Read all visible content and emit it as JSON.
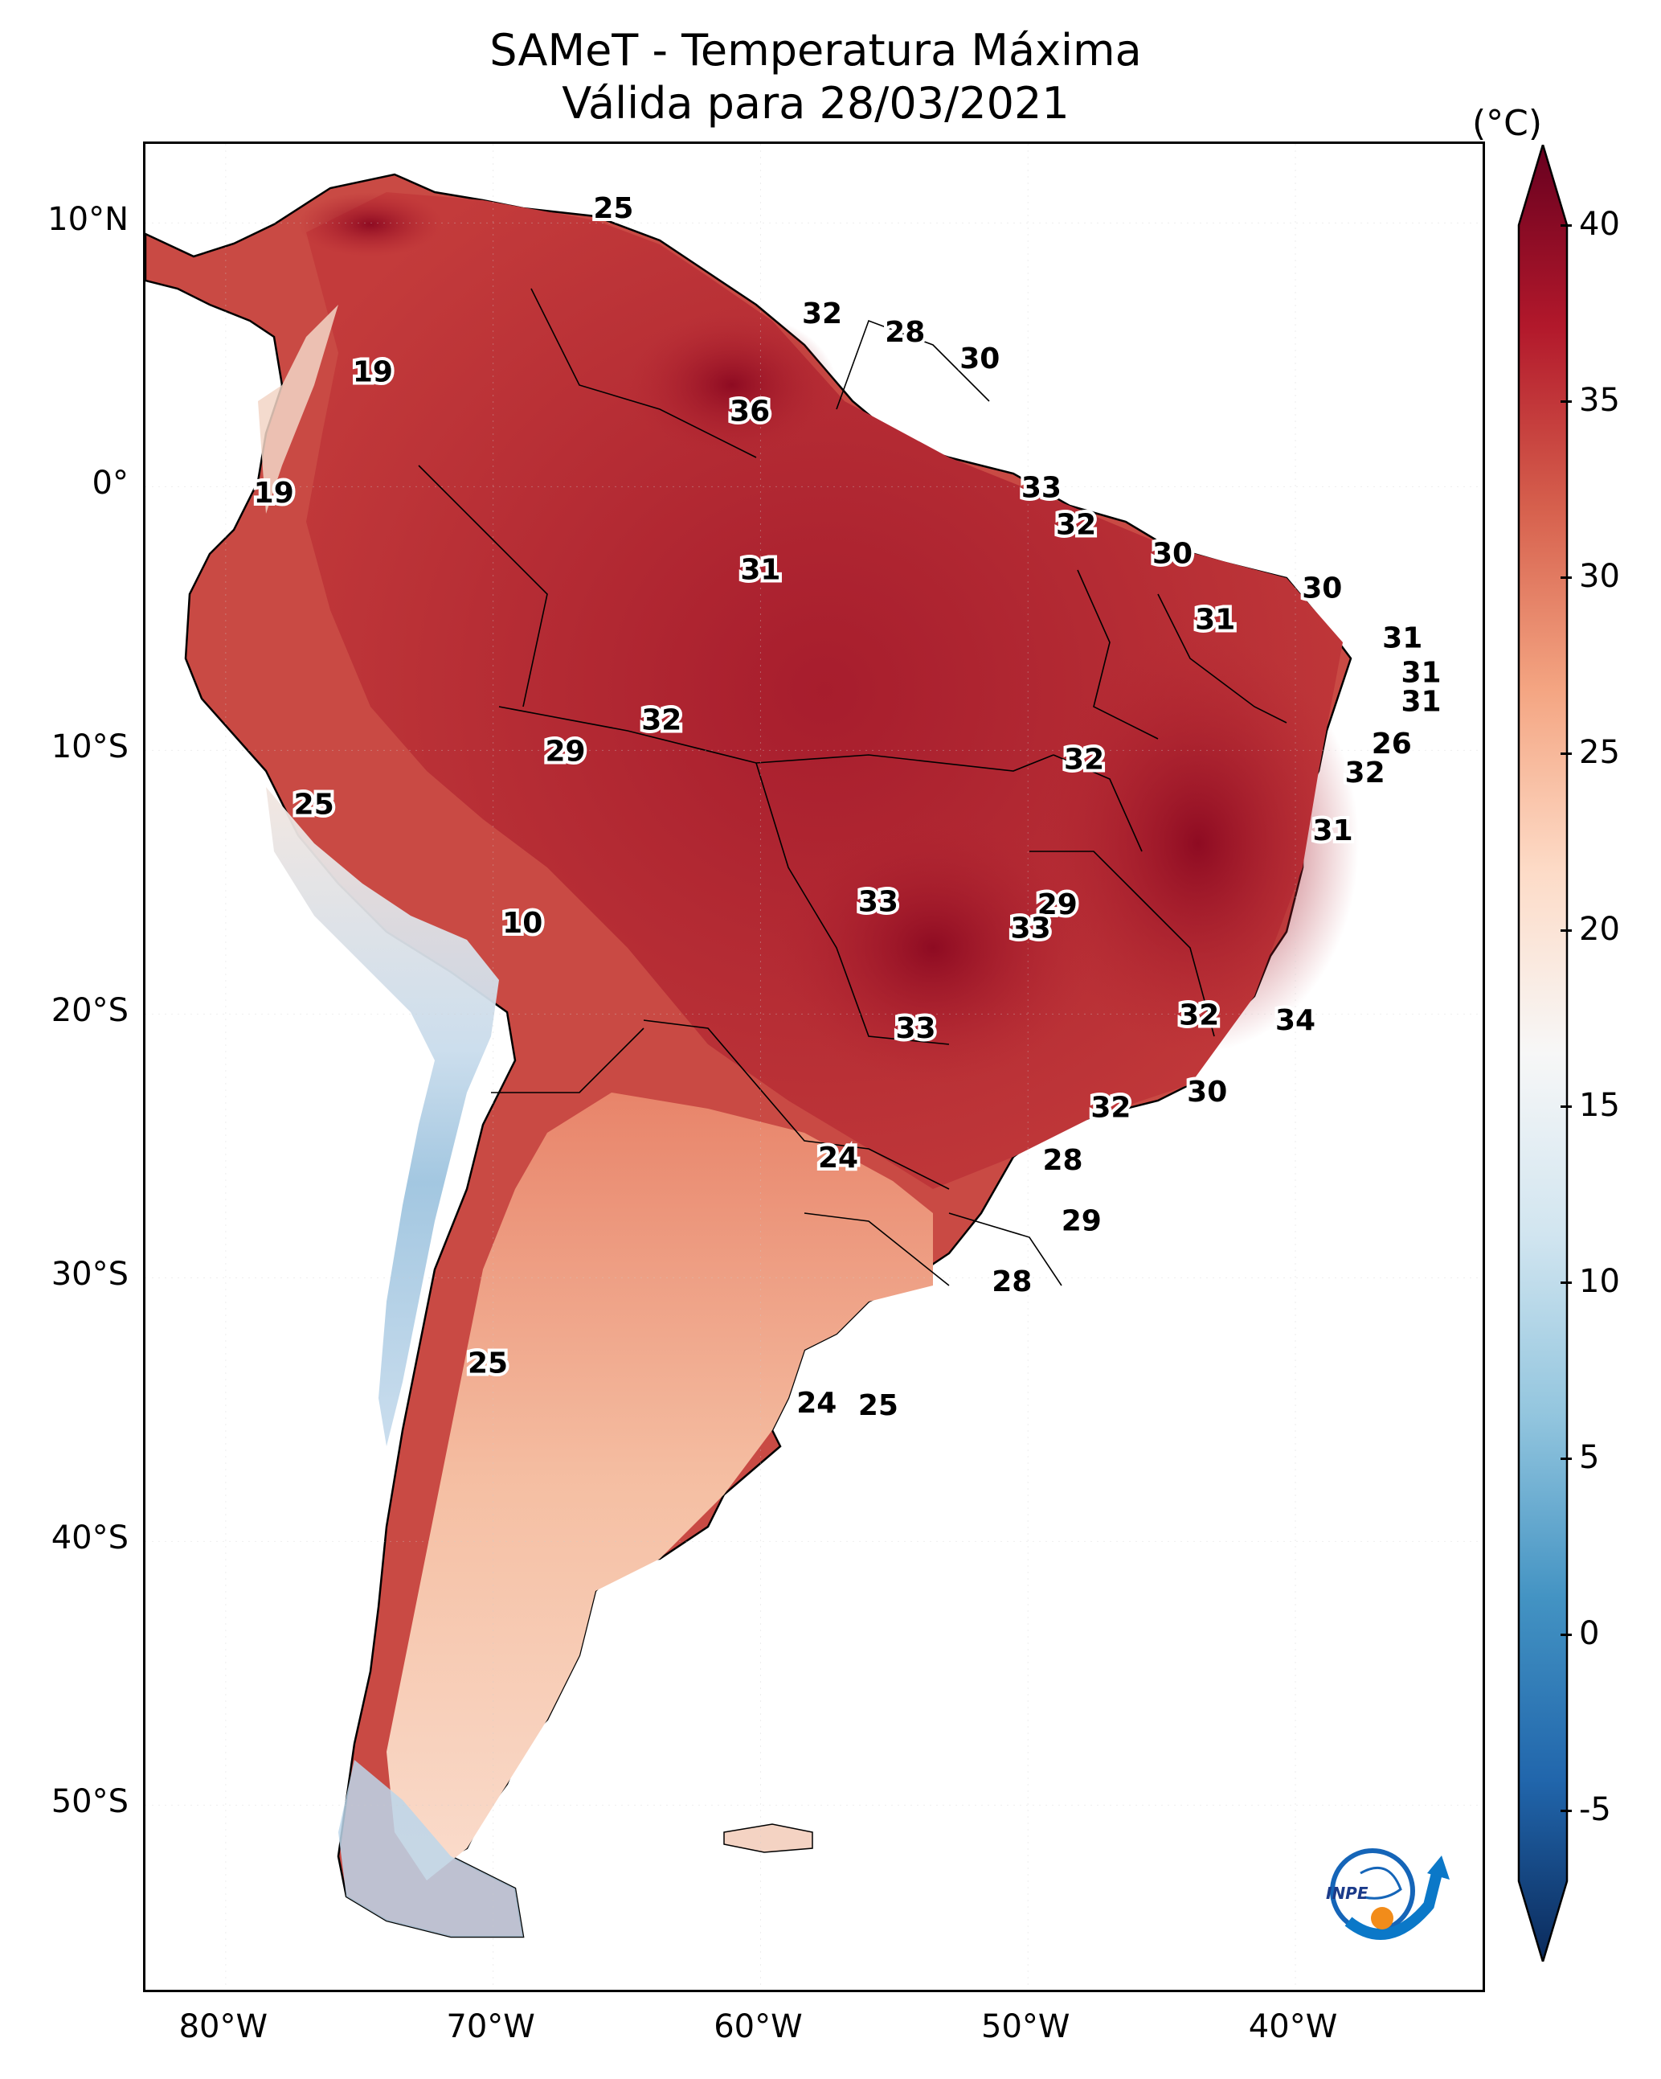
{
  "title": {
    "line1": "SAMeT - Temperatura Máxima",
    "line2": "Válida para 28/03/2021"
  },
  "map": {
    "type": "heatmap",
    "region": "South America",
    "lon_range": [
      -83,
      -33
    ],
    "lat_range": [
      -57,
      13
    ],
    "lat_ticks": [
      "10°N",
      "0°",
      "10°S",
      "20°S",
      "30°S",
      "40°S",
      "50°S"
    ],
    "lon_ticks": [
      "80°W",
      "70°W",
      "60°W",
      "50°W",
      "40°W"
    ]
  },
  "colorbar": {
    "unit": "(°C)",
    "ticks": [
      "40",
      "35",
      "30",
      "25",
      "20",
      "15",
      "10",
      "5",
      "0",
      "-5"
    ],
    "range": [
      -7,
      40
    ],
    "colormap": "RdBu_r",
    "extend": "both",
    "colors": [
      "#0b2a5b",
      "#2166ac",
      "#4393c3",
      "#92c5de",
      "#d1e5f0",
      "#f7f7f7",
      "#fddbc7",
      "#f4a582",
      "#d6604d",
      "#b2182b",
      "#67001f"
    ]
  },
  "contour_labels": [
    {
      "value": "25",
      "lon": -65.5,
      "lat": 10.5
    },
    {
      "value": "19",
      "lon": -74.5,
      "lat": 4.3
    },
    {
      "value": "32",
      "lon": -57.7,
      "lat": 6.5
    },
    {
      "value": "28",
      "lon": -54.6,
      "lat": 5.8
    },
    {
      "value": "30",
      "lon": -51.8,
      "lat": 4.8
    },
    {
      "value": "36",
      "lon": -60.4,
      "lat": 2.8
    },
    {
      "value": "19",
      "lon": -78.2,
      "lat": -0.3
    },
    {
      "value": "33",
      "lon": -49.5,
      "lat": -0.1
    },
    {
      "value": "32",
      "lon": -48.2,
      "lat": -1.5
    },
    {
      "value": "30",
      "lon": -44.6,
      "lat": -2.6
    },
    {
      "value": "31",
      "lon": -60.0,
      "lat": -3.2
    },
    {
      "value": "30",
      "lon": -39.0,
      "lat": -3.9
    },
    {
      "value": "31",
      "lon": -43.0,
      "lat": -5.1
    },
    {
      "value": "31",
      "lon": -36.0,
      "lat": -5.8
    },
    {
      "value": "31",
      "lon": -35.3,
      "lat": -7.1
    },
    {
      "value": "31",
      "lon": -35.3,
      "lat": -8.2
    },
    {
      "value": "32",
      "lon": -63.7,
      "lat": -8.9
    },
    {
      "value": "26",
      "lon": -36.4,
      "lat": -9.8
    },
    {
      "value": "29",
      "lon": -67.3,
      "lat": -10.1
    },
    {
      "value": "32",
      "lon": -47.9,
      "lat": -10.4
    },
    {
      "value": "32",
      "lon": -37.4,
      "lat": -10.9
    },
    {
      "value": "25",
      "lon": -76.7,
      "lat": -12.1
    },
    {
      "value": "31",
      "lon": -38.6,
      "lat": -13.1
    },
    {
      "value": "33",
      "lon": -55.6,
      "lat": -15.8
    },
    {
      "value": "29",
      "lon": -48.9,
      "lat": -15.9
    },
    {
      "value": "33",
      "lon": -49.9,
      "lat": -16.8
    },
    {
      "value": "10",
      "lon": -68.9,
      "lat": -16.6
    },
    {
      "value": "32",
      "lon": -43.6,
      "lat": -20.1
    },
    {
      "value": "34",
      "lon": -40.0,
      "lat": -20.3
    },
    {
      "value": "33",
      "lon": -54.2,
      "lat": -20.6
    },
    {
      "value": "30",
      "lon": -43.3,
      "lat": -23.0
    },
    {
      "value": "32",
      "lon": -46.9,
      "lat": -23.6
    },
    {
      "value": "24",
      "lon": -57.1,
      "lat": -25.5
    },
    {
      "value": "28",
      "lon": -48.7,
      "lat": -25.6
    },
    {
      "value": "29",
      "lon": -48.0,
      "lat": -27.9
    },
    {
      "value": "28",
      "lon": -50.6,
      "lat": -30.2
    },
    {
      "value": "25",
      "lon": -70.2,
      "lat": -33.3
    },
    {
      "value": "24",
      "lon": -57.9,
      "lat": -34.8
    },
    {
      "value": "25",
      "lon": -55.6,
      "lat": -34.9
    }
  ],
  "logo": {
    "text": "INPE"
  }
}
